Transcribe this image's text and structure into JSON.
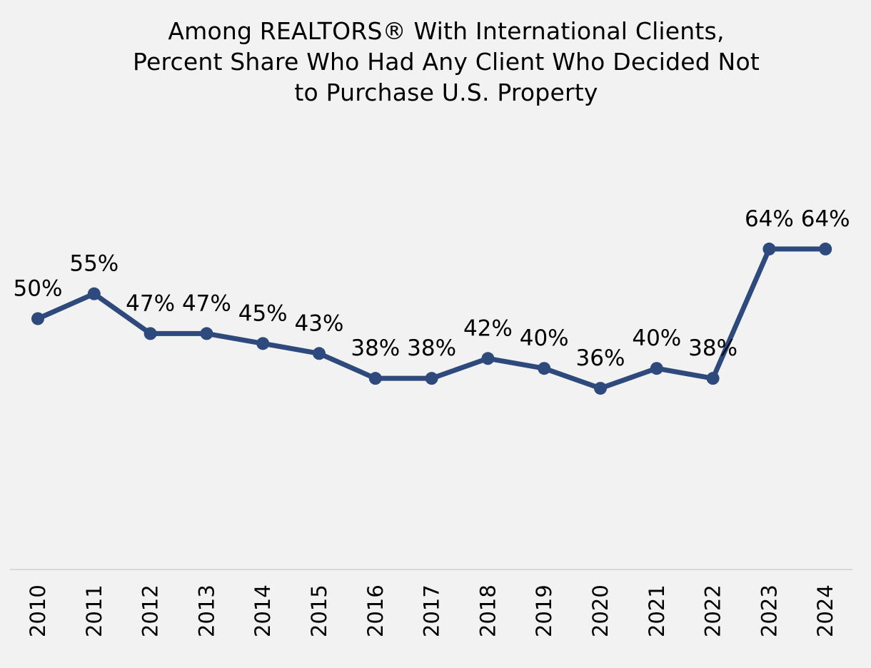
{
  "chart_data": {
    "type": "line",
    "title": [
      "Among REALTORS® With International Clients,",
      "Percent Share Who Had Any Client Who Decided Not",
      "to Purchase U.S. Property"
    ],
    "xlabel": "",
    "ylabel": "",
    "categories": [
      "2010",
      "2011",
      "2012",
      "2013",
      "2014",
      "2015",
      "2016",
      "2017",
      "2018",
      "2019",
      "2020",
      "2021",
      "2022",
      "2023",
      "2024"
    ],
    "series": [
      {
        "values": [
          50,
          55,
          47,
          47,
          45,
          43,
          38,
          38,
          42,
          40,
          36,
          40,
          38,
          64,
          64
        ],
        "data_labels": [
          "50%",
          "55%",
          "47%",
          "47%",
          "45%",
          "43%",
          "38%",
          "38%",
          "42%",
          "40%",
          "36%",
          "40%",
          "38%",
          "64%",
          "64%"
        ]
      }
    ],
    "ylim": [
      0,
      80
    ],
    "grid": false,
    "legend": "none",
    "colors": {
      "line": "#2e4a7d",
      "background": "#f2f2f2",
      "axis": "#d9d9d9"
    }
  }
}
